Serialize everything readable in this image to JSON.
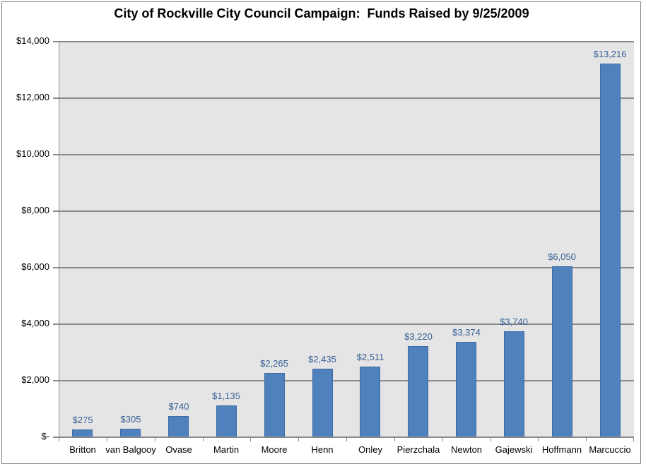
{
  "title": "City of Rockville City Council Campaign:  Funds Raised by 9/25/2009",
  "chart_data": {
    "type": "bar",
    "title": "City of Rockville City Council Campaign:  Funds Raised by 9/25/2009",
    "xlabel": "",
    "ylabel": "",
    "categories": [
      "Britton",
      "van Balgooy",
      "Ovase",
      "Martin",
      "Moore",
      "Henn",
      "Onley",
      "Pierzchala",
      "Newton",
      "Gajewski",
      "Hoffmann",
      "Marcuccio"
    ],
    "values": [
      275,
      305,
      740,
      1135,
      2265,
      2435,
      2511,
      3220,
      3374,
      3740,
      6050,
      13216
    ],
    "value_labels": [
      "$275",
      "$305",
      "$740",
      "$1,135",
      "$2,265",
      "$2,435",
      "$2,511",
      "$3,220",
      "$3,374",
      "$3,740",
      "$6,050",
      "$13,216"
    ],
    "ylim": [
      0,
      14000
    ],
    "y_tick_interval": 2000,
    "y_tick_labels": [
      "$-",
      "$2,000",
      "$4,000",
      "$6,000",
      "$8,000",
      "$10,000",
      "$12,000",
      "$14,000"
    ],
    "grid": true,
    "legend": false,
    "colors": {
      "background": "#FFFFFF",
      "chart_border": "#7F7F7F",
      "plot_background": "#E5E5E5",
      "gridline": "#898989",
      "axis": "#898989",
      "bar_fill": "#4F81BD",
      "bar_border": "#3A6BA5",
      "value_label": "#366096",
      "tick_label": "#000000",
      "title": "#000000"
    }
  }
}
